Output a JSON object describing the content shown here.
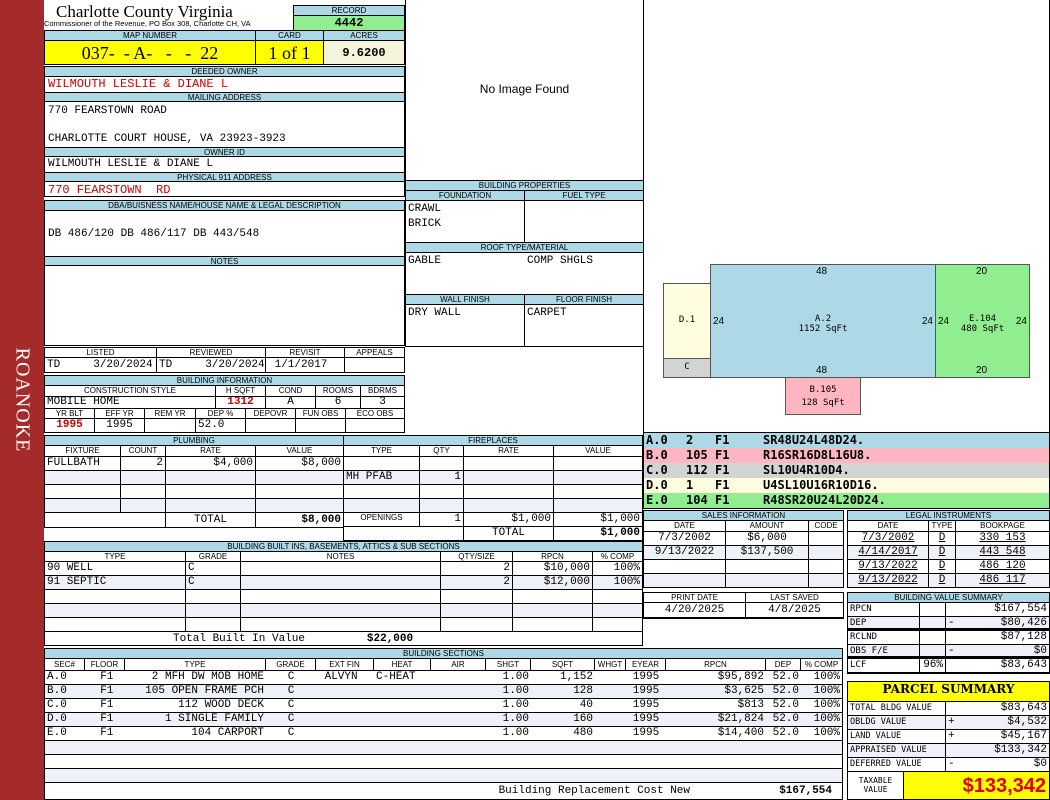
{
  "side_label": "ROANOKE",
  "header": {
    "county_title": "Charlotte County Virginia",
    "subtitle": "Commissioner of the Revenue, PO Box 308, Charlotte CH, VA",
    "record_label": "RECORD",
    "record_value": "4442",
    "map_label": "MAP NUMBER",
    "map_value": "037-  - A-   -   -  22",
    "card_label": "CARD",
    "card_value": "1 of 1",
    "acres_label": "ACRES",
    "acres_value": "9.6200"
  },
  "owner": {
    "deeded_label": "DEEDED OWNER",
    "deeded_value": "WILMOUTH LESLIE & DIANE L",
    "mailing_label": "MAILING ADDRESS",
    "mailing_line1": "770 FEARSTOWN ROAD",
    "mailing_line2": "CHARLOTTE COURT HOUSE, VA 23923-3923",
    "owner_id_label": "OWNER ID",
    "owner_id_value": "WILMOUTH LESLIE & DIANE L",
    "physical_label": "PHYSICAL 911 ADDRESS",
    "physical_value": "770 FEARSTOWN  RD",
    "dba_label": "DBA/BUISNESS NAME/HOUSE NAME & LEGAL DESCRIPTION",
    "dba_value": "DB 486/120 DB 486/117 DB 443/548",
    "notes_label": "NOTES"
  },
  "dates": {
    "columns": [
      "LISTED",
      "REVIEWED",
      "REVISIT",
      "APPEALS"
    ],
    "values": [
      "TD     3/20/2024",
      "TD     3/20/2024",
      " 1/1/2017",
      ""
    ]
  },
  "building_info": {
    "title": "BUILDING INFORMATION",
    "columns1": [
      "CONSTRUCTION STYLE",
      "H SQFT",
      "COND",
      "ROOMS",
      "BDRMS"
    ],
    "values1": [
      "MOBILE HOME",
      "1312",
      "A",
      "6",
      "3"
    ],
    "columns2": [
      "YR BLT",
      "EFF YR",
      "REM YR",
      "DEP %",
      "DEPOVR",
      "FUN OBS",
      "ECO OBS"
    ],
    "values2": [
      "1995",
      "1995",
      "",
      "52.0",
      "",
      "",
      ""
    ]
  },
  "plumbing": {
    "title": "PLUMBING",
    "columns": [
      "FIXTURE",
      "COUNT",
      "RATE",
      "VALUE"
    ],
    "rows": [
      [
        "FULLBATH",
        "2",
        "$4,000",
        "$8,000"
      ],
      [
        "",
        "",
        "",
        ""
      ],
      [
        "",
        "",
        "",
        ""
      ],
      [
        "",
        "",
        "",
        ""
      ]
    ],
    "total_label": "TOTAL",
    "total_value": "$8,000"
  },
  "fireplaces": {
    "title": "FIREPLACES",
    "columns": [
      "TYPE",
      "QTY",
      "RATE",
      "VALUE"
    ],
    "rows": [
      [
        "",
        "",
        "",
        ""
      ],
      [
        "MH PFAB",
        "1",
        "",
        ""
      ],
      [
        "",
        "",
        "",
        ""
      ],
      [
        "",
        "",
        "",
        ""
      ]
    ],
    "openings": [
      "OPENINGS",
      "1",
      "$1,000",
      "$1,000"
    ],
    "total_label": "TOTAL",
    "total_value": "$1,000"
  },
  "built_ins": {
    "title": "BUILDING BUILT INS, BASEMENTS, ATTICS & SUB SECTIONS",
    "columns": [
      "TYPE",
      "GRADE",
      "NOTES",
      "QTY/SIZE",
      "RPCN",
      "% COMP"
    ],
    "rows": [
      [
        "90 WELL",
        "C",
        "",
        "2",
        "$10,000",
        "100%"
      ],
      [
        "91 SEPTIC",
        "C",
        "",
        "2",
        "$12,000",
        "100%"
      ],
      [
        "",
        "",
        "",
        "",
        "",
        ""
      ],
      [
        "",
        "",
        "",
        "",
        "",
        ""
      ],
      [
        "",
        "",
        "",
        "",
        "",
        ""
      ]
    ],
    "total_label": "Total Built In Value",
    "total_value": "$22,000"
  },
  "sections": {
    "title": "BUILDING SECTIONS",
    "columns": [
      "SEC#",
      "FLOOR",
      "TYPE",
      "GRADE",
      "EXT FIN",
      "HEAT",
      "AIR",
      "SHGT",
      "SQFT",
      "WHGT",
      "EYEAR",
      "RPCN",
      "DEP",
      "% COMP"
    ],
    "rows": [
      [
        "A.0",
        "  F1",
        "   2 MFH DW MOB HOME",
        "C",
        " ALVYN",
        "C-HEAT",
        "",
        "1.00",
        "1,152",
        "",
        "1995",
        "$95,892",
        "52.0",
        "100%"
      ],
      [
        "B.0",
        "  F1",
        " 105 OPEN FRAME PCH",
        "C",
        "",
        "",
        "",
        "1.00",
        "128",
        "",
        "1995",
        "$3,625",
        "52.0",
        "100%"
      ],
      [
        "C.0",
        "  F1",
        " 112 WOOD DECK",
        "C",
        "",
        "",
        "",
        "1.00",
        "40",
        "",
        "1995",
        "$813",
        "52.0",
        "100%"
      ],
      [
        "D.0",
        "  F1",
        "   1 SINGLE FAMILY",
        "C",
        "",
        "",
        "",
        "1.00",
        "160",
        "",
        "1995",
        "$21,824",
        "52.0",
        "100%"
      ],
      [
        "E.0",
        "  F1",
        " 104 CARPORT",
        "C",
        "",
        "",
        "",
        "1.00",
        "480",
        "",
        "1995",
        "$14,400",
        "52.0",
        "100%"
      ],
      [
        "",
        "",
        "",
        "",
        "",
        "",
        "",
        "",
        "",
        "",
        "",
        "",
        "",
        ""
      ],
      [
        "",
        "",
        "",
        "",
        "",
        "",
        "",
        "",
        "",
        "",
        "",
        "",
        "",
        ""
      ],
      [
        "",
        "",
        "",
        "",
        "",
        "",
        "",
        "",
        "",
        "",
        "",
        "",
        "",
        ""
      ]
    ],
    "footer_label": "Building Replacement Cost New",
    "footer_value": "$167,554"
  },
  "image_placeholder": "No Image Found",
  "building_properties": {
    "title": "BUILDING PROPERTIES",
    "foundation_label": "FOUNDATION",
    "fuel_label": "FUEL TYPE",
    "foundation_values": [
      "CRAWL",
      "BRICK"
    ],
    "fuel_value": "",
    "roof_label": "ROOF TYPE/MATERIAL",
    "roof_type": "GABLE",
    "roof_material": "COMP SHGLS",
    "wall_label": "WALL FINISH",
    "floor_label": "FLOOR FINISH",
    "wall_value": "DRY WALL",
    "floor_value": "CARPET"
  },
  "sketch": {
    "A": {
      "label": "A.2",
      "area": "1152 SqFt",
      "top": "48",
      "bottom": "48",
      "left": "24",
      "right": "24",
      "color": "#add8e6"
    },
    "E": {
      "label": "E.104",
      "area": "480 SqFt",
      "top": "20",
      "bottom": "20",
      "left": "24",
      "right": "24",
      "color": "#90ee90"
    },
    "D": {
      "label": "D.1",
      "color": "#fffde0"
    },
    "C": {
      "label": "C",
      "color": "#d3d3d3"
    },
    "B": {
      "label": "B.105",
      "area": "128 SqFt",
      "color": "#ffb6c1"
    }
  },
  "sketch_legend": [
    {
      "sec": "A.0",
      "code": "2",
      "floor": "F1",
      "path": "SR48U24L48D24.",
      "color": "#add8e6"
    },
    {
      "sec": "B.0",
      "code": "105",
      "floor": "F1",
      "path": "R16SR16D8L16U8.",
      "color": "#ffb6c1"
    },
    {
      "sec": "C.0",
      "code": "112",
      "floor": "F1",
      "path": "SL10U4R10D4.",
      "color": "#d3d3d3"
    },
    {
      "sec": "D.0",
      "code": "1",
      "floor": "F1",
      "path": "U4SL10U16R10D16.",
      "color": "#fffde0"
    },
    {
      "sec": "E.0",
      "code": "104",
      "floor": "F1",
      "path": "R48SR20U24L20D24.",
      "color": "#90ee90"
    }
  ],
  "sales": {
    "title": "SALES INFORMATION",
    "columns": [
      "DATE",
      "AMOUNT",
      "CODE"
    ],
    "rows": [
      [
        "7/3/2002",
        "$6,000",
        ""
      ],
      [
        "9/13/2022",
        "$137,500",
        ""
      ],
      [
        "",
        "",
        ""
      ],
      [
        "",
        "",
        ""
      ]
    ]
  },
  "legal": {
    "title": "LEGAL INSTRUMENTS",
    "columns": [
      "DATE",
      "TYPE",
      "BOOKPAGE"
    ],
    "rows": [
      [
        "7/3/2002",
        "D",
        "330 153"
      ],
      [
        "4/14/2017",
        "D",
        "443 548"
      ],
      [
        "9/13/2022",
        "D",
        "486 120"
      ],
      [
        "9/13/2022",
        "D",
        "486 117"
      ]
    ]
  },
  "print_info": {
    "columns": [
      "PRINT DATE",
      "LAST SAVED"
    ],
    "values": [
      "4/20/2025",
      "4/8/2025"
    ]
  },
  "value_summary": {
    "title": "BUILDING VALUE SUMMARY",
    "rows": [
      [
        "RPCN",
        "",
        "",
        "$167,554"
      ],
      [
        "DEP",
        "",
        "-",
        "$80,426"
      ],
      [
        "RCLND",
        "",
        "",
        "$87,128"
      ],
      [
        "OBS F/E",
        "",
        "-",
        "$0"
      ],
      [
        "LCF",
        "96%",
        "",
        "$83,643"
      ]
    ]
  },
  "parcel_summary": {
    "title": "PARCEL SUMMARY",
    "rows": [
      [
        "TOTAL BLDG VALUE",
        "",
        "$83,643"
      ],
      [
        "OBLDG VALUE",
        "+",
        "$4,532"
      ],
      [
        "LAND VALUE",
        "+",
        "$45,167"
      ],
      [
        "APPRAISED VALUE",
        "",
        "$133,342"
      ],
      [
        "DEFERRED VALUE",
        "-",
        "$0"
      ]
    ],
    "taxable_label": "TAXABLE VALUE",
    "taxable_value": "$133,342"
  },
  "colors": {
    "header": "#add8e6",
    "record": "#90ee90",
    "map": "#ffff00",
    "acres": "#f5f5dc",
    "side": "#a52a2a",
    "emphasis": "#d00000"
  }
}
